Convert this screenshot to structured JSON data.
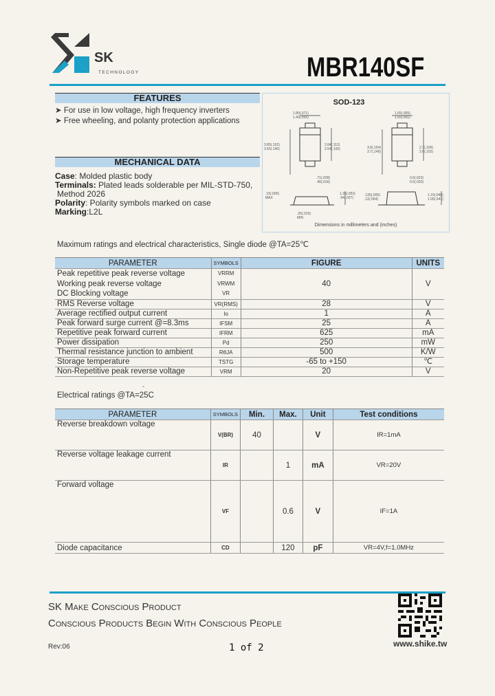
{
  "header": {
    "logo_text": "SK",
    "logo_subtext": "TECHNOLOGY",
    "part_number": "MBR140SF"
  },
  "colors": {
    "accent": "#1ba0c8",
    "band": "#b9d5ea",
    "logo_dark": "#3a3a3a"
  },
  "features": {
    "heading": "FEATURES",
    "items": [
      "For use in low voltage, high frequency inverters",
      "Free wheeling, and polanty protection applications"
    ]
  },
  "mechanical": {
    "heading": "MECHANICAL DATA",
    "case_label": "Case",
    "case_value": ": Molded plastic body",
    "terminals_label": "Terminals:",
    "terminals_value": " Plated leads solderable per MIL-STD-750,",
    "terminals_value2": "Method 2026",
    "polarity_label": "Polarity",
    "polarity_value": ": Polarity symbols marked on case",
    "marking_label": "Marking",
    "marking_value": ":L2L"
  },
  "diagram": {
    "package": "SOD-123",
    "caption": "Dimensions in millimeters and (inches)",
    "dims_left": [
      "1.80(.071)",
      "1.40(.055)",
      "3.85(.152)",
      "3.55(.140)",
      "2.84(.112)",
      "2.54(.100)",
      ".71(.028)",
      ".40(.016)",
      ".15(.006)",
      "MAX",
      "1.35(.053)",
      ".94(.037)",
      ".25(.010)",
      "MIN"
    ],
    "dims_right": [
      "1.65(.065)",
      "1.55(.061)",
      "3.9(.154)",
      "3.7(.146)",
      "2.7(.106)",
      "2.6(.102)",
      "0.6(.023)",
      "0.5(.020)",
      ".135(.005)",
      ".12(.004)",
      "1.15(.045)",
      "1.05(.041)"
    ]
  },
  "max_ratings": {
    "caption": "Maximum ratings and electrical characteristics, Single diode @TA=25℃",
    "headers": [
      "PARAMETER",
      "SYMBOLS",
      "FIGURE",
      "UNITS"
    ],
    "group": {
      "params": [
        "Peak repetitive peak reverse voltage",
        "Working peak reverse voltage",
        "DC Blocking voltage"
      ],
      "symbols": [
        "VRRM",
        "VRWM",
        "VR"
      ],
      "figure": "40",
      "unit": "V"
    },
    "rows": [
      {
        "param": "RMS Reverse voltage",
        "symbol": "VR(RMS)",
        "figure": "28",
        "unit": "V"
      },
      {
        "param": "Average rectified output current",
        "symbol": "Io",
        "figure": "1",
        "unit": "A"
      },
      {
        "param": "Peak forward surge current @=8.3ms",
        "symbol": "IFSM",
        "figure": "25",
        "unit": "A"
      },
      {
        "param": "Repetitive peak forward current",
        "symbol": "IFRM",
        "figure": "625",
        "unit": "mA"
      },
      {
        "param": "Power dissipation",
        "symbol": "Pd",
        "figure": "250",
        "unit": "mW"
      },
      {
        "param": "Thermal resistance junction to ambient",
        "symbol": "RθJA",
        "figure": "500",
        "unit": "K/W"
      },
      {
        "param": "Storage temperature",
        "symbol": "TSTG",
        "figure": "-65 to +150",
        "unit": "℃"
      },
      {
        "param": "Non-Repetitive peak reverse voltage",
        "symbol": "VRM",
        "figure": "20",
        "unit": "V"
      }
    ]
  },
  "elec_ratings": {
    "caption": "Electrical ratings @TA=25C",
    "headers": [
      "PARAMETER",
      "SYMBOLS",
      "Min.",
      "Max.",
      "Unit",
      "Test  conditions"
    ],
    "rows": [
      {
        "param": "Reverse breakdown voltage",
        "symbol": "V(BR)",
        "min": "40",
        "max": "",
        "unit": "V",
        "cond": "IR=1mA"
      },
      {
        "param": "Reverse voltage leakage current",
        "symbol": "IR",
        "min": "",
        "max": "1",
        "unit": "mA",
        "cond": "VR=20V"
      },
      {
        "param": "Forward voltage",
        "symbol": "VF",
        "min": "",
        "max": "0.6",
        "unit": "V",
        "cond": "IF=1A"
      },
      {
        "param": "Diode capacitance",
        "symbol": "CD",
        "min": "",
        "max": "120",
        "unit": "pF",
        "cond": "VR=4V,f=1.0MHz"
      }
    ]
  },
  "footer": {
    "slogan1": "SK Make Conscious Product",
    "slogan2": "Conscious Products Begin With Conscious People",
    "revision": "Rev:06",
    "page": "1 of 2",
    "website": "www.shike.tw"
  }
}
